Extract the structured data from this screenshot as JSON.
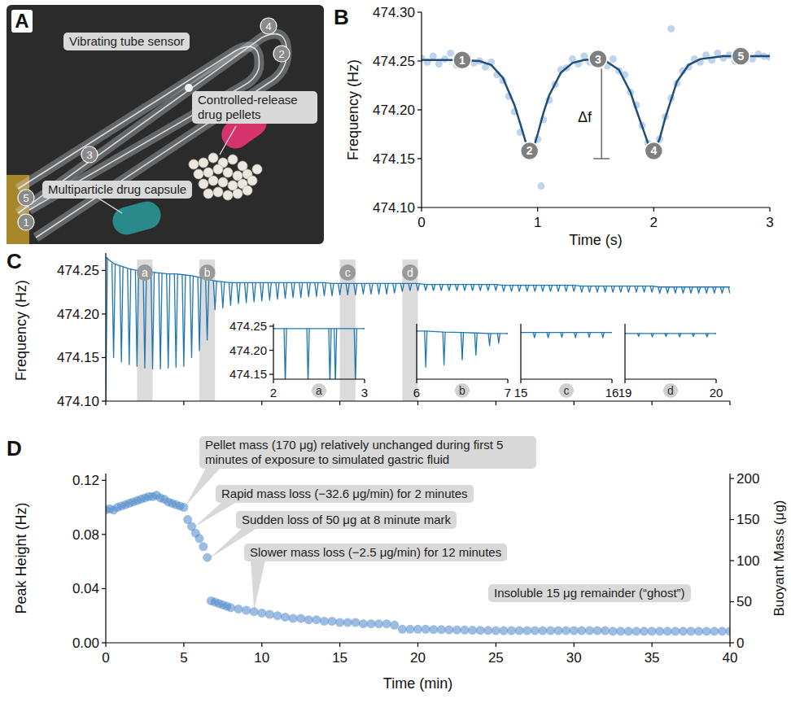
{
  "photo": {
    "label": "A",
    "texts": [
      "Vibrating tube sensor",
      "Controlled-release drug pellets",
      "Multiparticle drug capsule"
    ],
    "markers": [
      "1",
      "2",
      "3",
      "4",
      "5"
    ]
  },
  "chart_data": [
    {
      "label": "B",
      "type": "scatter",
      "color": "#6f9fd8",
      "x": [
        0,
        0.05,
        0.1,
        0.15,
        0.2,
        0.25,
        0.3,
        0.35,
        0.4,
        0.45,
        0.5,
        0.55,
        0.6,
        0.65,
        0.7,
        0.75,
        0.8,
        0.85,
        0.9,
        0.95,
        1.0,
        1.05,
        1.1,
        1.15,
        1.2,
        1.25,
        1.3,
        1.35,
        1.4,
        1.45,
        1.5,
        1.55,
        1.6,
        1.65,
        1.7,
        1.75,
        1.8,
        1.85,
        1.9,
        1.95,
        2.0,
        2.05,
        2.1,
        2.15,
        2.2,
        2.25,
        2.3,
        2.35,
        2.4,
        2.45,
        2.5,
        2.55,
        2.6,
        2.65,
        2.7,
        2.75,
        2.8,
        2.85,
        2.9,
        2.95,
        3.0,
        1.03,
        2.15
      ],
      "values": [
        474.253,
        474.249,
        474.255,
        474.247,
        474.252,
        474.258,
        474.246,
        474.251,
        474.254,
        474.248,
        474.25,
        474.244,
        474.249,
        474.236,
        474.23,
        474.214,
        474.198,
        474.177,
        474.16,
        474.152,
        474.17,
        474.19,
        474.21,
        474.226,
        474.241,
        474.243,
        474.252,
        474.247,
        474.255,
        474.249,
        474.256,
        474.25,
        474.245,
        474.252,
        474.24,
        474.236,
        474.218,
        474.205,
        474.184,
        474.166,
        474.155,
        474.17,
        474.193,
        474.212,
        474.227,
        474.24,
        474.244,
        474.252,
        474.249,
        474.256,
        474.251,
        474.258,
        474.253,
        474.256,
        474.25,
        474.259,
        474.254,
        474.252,
        474.257,
        474.255,
        474.254,
        474.122,
        474.283
      ],
      "fit": {
        "color": "#1f4e79",
        "x": [
          0,
          0.3,
          0.5,
          0.6,
          0.7,
          0.8,
          0.85,
          0.9,
          0.93,
          0.97,
          1.0,
          1.05,
          1.1,
          1.2,
          1.3,
          1.4,
          1.5,
          1.6,
          1.7,
          1.8,
          1.85,
          1.9,
          1.95,
          2.0,
          2.05,
          2.1,
          2.2,
          2.3,
          2.4,
          2.6,
          3.0
        ],
        "values": [
          474.251,
          474.251,
          474.25,
          474.246,
          474.233,
          474.205,
          474.186,
          474.166,
          474.158,
          474.163,
          474.175,
          474.197,
          474.215,
          474.238,
          474.248,
          474.251,
          474.252,
          474.249,
          474.241,
          474.218,
          474.2,
          474.183,
          474.166,
          474.158,
          474.17,
          474.192,
          474.229,
          474.246,
          474.252,
          474.255,
          474.255
        ]
      },
      "point_labels": [
        {
          "x": 0.35,
          "y": 474.251,
          "label": "1"
        },
        {
          "x": 0.93,
          "y": 474.158,
          "label": "2"
        },
        {
          "x": 1.52,
          "y": 474.252,
          "label": "3"
        },
        {
          "x": 2.0,
          "y": 474.158,
          "label": "4"
        },
        {
          "x": 2.75,
          "y": 474.255,
          "label": "5"
        }
      ],
      "annotations": [
        {
          "text": "Δf",
          "x": 1.55,
          "y_from": 474.252,
          "y_to": 474.15
        }
      ],
      "xlim": [
        0,
        3
      ],
      "ylim": [
        474.1,
        474.3
      ],
      "xticks": [
        0,
        1,
        2,
        3
      ],
      "yticks": [
        {
          "value": 474.1,
          "label": "474.10"
        },
        474.15,
        {
          "value": 474.2,
          "label": "474.20"
        },
        474.25,
        {
          "value": 474.3,
          "label": "474.30"
        }
      ],
      "x_label": "Time (s)",
      "y_label": "Frequency (Hz)"
    },
    {
      "label": "C",
      "type": "line",
      "color": "#1f77b4",
      "x": [
        0,
        0.5,
        1,
        1.5,
        2,
        2.5,
        3,
        3.5,
        4,
        4.5,
        5,
        5.5,
        6,
        6.5,
        7,
        7.5,
        8,
        8.5,
        9,
        9.5,
        10,
        10.5,
        11,
        11.5,
        12,
        12.5,
        13,
        13.5,
        14,
        14.5,
        15,
        15.5,
        16,
        16.5,
        17,
        17.5,
        18,
        18.5,
        19,
        19.5,
        20,
        20.5,
        21,
        21.5,
        22,
        22.5,
        23,
        23.5,
        24,
        24.5,
        25,
        25.5,
        26,
        26.5,
        27,
        27.5,
        28,
        28.5,
        29,
        29.5,
        30,
        30.5,
        31,
        31.5,
        32,
        32.5,
        33,
        33.5,
        34,
        34.5,
        35,
        35.5,
        36,
        36.5,
        37,
        37.5,
        38,
        38.5,
        39,
        39.5,
        40
      ],
      "series": [
        {
          "values": [
            474.265,
            474.258,
            474.255,
            474.252,
            474.25,
            474.249,
            474.248,
            474.247,
            474.246,
            474.246,
            474.245,
            474.244,
            474.242,
            474.24,
            474.238,
            474.237,
            474.236,
            474.236,
            474.236,
            474.236,
            474.236,
            474.236,
            474.236,
            474.236,
            474.236,
            474.236,
            474.236,
            474.236,
            474.236,
            474.235,
            474.235,
            474.235,
            474.235,
            474.235,
            474.235,
            474.235,
            474.235,
            474.235,
            474.235,
            474.235,
            474.235,
            474.234,
            474.234,
            474.234,
            474.234,
            474.234,
            474.234,
            474.234,
            474.234,
            474.234,
            474.234,
            474.233,
            474.233,
            474.233,
            474.233,
            474.233,
            474.233,
            474.233,
            474.233,
            474.233,
            474.233,
            474.232,
            474.232,
            474.232,
            474.232,
            474.232,
            474.232,
            474.232,
            474.232,
            474.232,
            474.232,
            474.231,
            474.231,
            474.231,
            474.231,
            474.231,
            474.231,
            474.231,
            474.231,
            474.231,
            474.231
          ]
        },
        {
          "values": [
            474.1,
            474.15,
            474.145,
            474.142,
            474.14,
            474.138,
            474.137,
            474.137,
            474.138,
            474.139,
            474.14,
            474.15,
            474.158,
            474.17,
            474.205,
            474.207,
            474.21,
            474.212,
            474.213,
            474.214,
            474.215,
            474.216,
            474.217,
            474.218,
            474.219,
            474.219,
            474.22,
            474.22,
            474.221,
            474.221,
            474.222,
            474.222,
            474.222,
            474.223,
            474.223,
            474.223,
            474.223,
            474.224,
            474.226,
            474.227,
            474.227,
            474.227,
            474.227,
            474.227,
            474.227,
            474.227,
            474.227,
            474.227,
            474.227,
            474.227,
            474.227,
            474.226,
            474.226,
            474.226,
            474.226,
            474.226,
            474.226,
            474.226,
            474.226,
            474.226,
            474.226,
            474.225,
            474.225,
            474.225,
            474.225,
            474.225,
            474.225,
            474.225,
            474.225,
            474.225,
            474.225,
            474.224,
            474.224,
            474.224,
            474.224,
            474.224,
            474.224,
            474.224,
            474.224,
            474.224,
            474.224
          ]
        }
      ],
      "xlim": [
        0,
        40
      ],
      "ylim": [
        474.1,
        474.27
      ],
      "xticks": [
        0,
        5,
        10,
        15,
        20,
        25,
        30,
        35,
        40
      ],
      "yticks": [
        {
          "value": 474.1,
          "label": "474.10"
        },
        474.15,
        {
          "value": 474.2,
          "label": "474.20"
        },
        474.25
      ],
      "tick_labels": "y",
      "y_label": "Frequency (Hz)",
      "highlights": [
        {
          "label": "a",
          "x": [
            2,
            3
          ]
        },
        {
          "label": "b",
          "x": [
            6,
            7
          ]
        },
        {
          "label": "c",
          "x": [
            15,
            16
          ]
        },
        {
          "label": "d",
          "x": [
            19,
            20
          ]
        }
      ],
      "insets": [
        {
          "label": "a",
          "type": "line",
          "color": "#1f77b4",
          "x": [
            2,
            2.13,
            2.38,
            2.62,
            2.68,
            2.9,
            3
          ],
          "series": [
            {
              "values": [
                474.245,
                474.245,
                474.245,
                474.245,
                474.245,
                474.245,
                474.245
              ]
            },
            {
              "values": [
                474.245,
                474.13,
                474.13,
                474.13,
                474.13,
                474.13,
                474.245
              ]
            }
          ],
          "xlim": [
            2,
            3
          ],
          "ylim": [
            474.14,
            474.255
          ],
          "xticks": [
            2,
            3
          ],
          "yticks": [
            474.15,
            {
              "value": 474.2,
              "label": "474.20"
            },
            474.25
          ]
        },
        {
          "label": "b",
          "type": "line",
          "color": "#1f77b4",
          "x": [
            6,
            6.1,
            6.3,
            6.5,
            6.65,
            6.8,
            6.9,
            7
          ],
          "series": [
            {
              "values": [
                474.24,
                474.24,
                474.238,
                474.237,
                474.236,
                474.235,
                474.235,
                474.235
              ]
            },
            {
              "values": [
                474.24,
                474.165,
                474.17,
                474.18,
                474.19,
                474.21,
                474.215,
                474.235
              ]
            }
          ],
          "xlim": [
            6,
            7
          ],
          "ylim": [
            474.14,
            474.255
          ],
          "xticks": [
            6,
            7
          ],
          "tick_labels": "x"
        },
        {
          "label": "c",
          "type": "line",
          "color": "#1f77b4",
          "x": [
            15,
            15.15,
            15.3,
            15.45,
            15.6,
            15.75,
            15.9,
            16
          ],
          "series": [
            {
              "values": [
                474.237,
                474.237,
                474.237,
                474.237,
                474.237,
                474.237,
                474.237,
                474.237
              ]
            },
            {
              "values": [
                474.237,
                474.226,
                474.226,
                474.227,
                474.226,
                474.227,
                474.226,
                474.237
              ]
            }
          ],
          "xlim": [
            15,
            16
          ],
          "ylim": [
            474.14,
            474.255
          ],
          "xticks": [
            15,
            16
          ],
          "tick_labels": "x"
        },
        {
          "label": "d",
          "type": "line",
          "color": "#1f77b4",
          "x": [
            19,
            19.15,
            19.3,
            19.45,
            19.6,
            19.75,
            19.9,
            20
          ],
          "series": [
            {
              "values": [
                474.235,
                474.235,
                474.235,
                474.235,
                474.235,
                474.235,
                474.235,
                474.235
              ]
            },
            {
              "values": [
                474.235,
                474.229,
                474.228,
                474.229,
                474.228,
                474.229,
                474.228,
                474.235
              ]
            }
          ],
          "xlim": [
            19,
            20
          ],
          "ylim": [
            474.14,
            474.255
          ],
          "xticks": [
            19,
            20
          ],
          "tick_labels": "x"
        }
      ]
    },
    {
      "label": "D",
      "type": "scatter",
      "color": "#4a86c8",
      "x": [
        0,
        0.25,
        0.5,
        0.75,
        1,
        1.25,
        1.5,
        1.75,
        2,
        2.25,
        2.5,
        2.75,
        3,
        3.25,
        3.5,
        3.75,
        4,
        4.25,
        4.5,
        4.75,
        5,
        5.25,
        5.5,
        5.75,
        6,
        6.25,
        6.5,
        6.75,
        7,
        7.25,
        7.5,
        7.75,
        8,
        8.5,
        9,
        9.5,
        10,
        10.5,
        11,
        11.5,
        12,
        12.5,
        13,
        13.5,
        14,
        14.5,
        15,
        15.5,
        16,
        16.5,
        17,
        17.5,
        18,
        18.5,
        19,
        19.5,
        20,
        20.5,
        21,
        21.5,
        22,
        22.5,
        23,
        23.5,
        24,
        24.5,
        25,
        25.5,
        26,
        26.5,
        27,
        27.5,
        28,
        28.5,
        29,
        29.5,
        30,
        30.5,
        31,
        31.5,
        32,
        32.5,
        33,
        33.5,
        34,
        34.5,
        35,
        35.5,
        36,
        36.5,
        37,
        37.5,
        38,
        38.5,
        39,
        39.5,
        40
      ],
      "values": [
        0.098,
        0.099,
        0.098,
        0.1,
        0.101,
        0.102,
        0.103,
        0.104,
        0.105,
        0.106,
        0.107,
        0.108,
        0.108,
        0.109,
        0.107,
        0.106,
        0.104,
        0.103,
        0.102,
        0.101,
        0.1,
        0.091,
        0.086,
        0.081,
        0.077,
        0.071,
        0.063,
        0.031,
        0.03,
        0.029,
        0.028,
        0.027,
        0.026,
        0.025,
        0.024,
        0.023,
        0.022,
        0.021,
        0.02,
        0.019,
        0.018,
        0.018,
        0.017,
        0.017,
        0.016,
        0.016,
        0.015,
        0.015,
        0.015,
        0.014,
        0.014,
        0.014,
        0.014,
        0.013,
        0.01,
        0.01,
        0.01,
        0.01,
        0.0098,
        0.0097,
        0.0096,
        0.0095,
        0.0094,
        0.0093,
        0.0092,
        0.0091,
        0.009,
        0.009,
        0.009,
        0.009,
        0.009,
        0.009,
        0.009,
        0.009,
        0.009,
        0.009,
        0.009,
        0.009,
        0.009,
        0.009,
        0.009,
        0.0085,
        0.0085,
        0.0085,
        0.0085,
        0.0085,
        0.0085,
        0.0085,
        0.0085,
        0.0085,
        0.0085,
        0.0085,
        0.0085,
        0.0085,
        0.0085,
        0.0085,
        0.0085
      ],
      "xlim": [
        0,
        40
      ],
      "ylim": [
        0,
        0.125
      ],
      "y2lim": [
        0,
        206
      ],
      "xticks": [
        0,
        5,
        10,
        15,
        20,
        25,
        30,
        35,
        40
      ],
      "yticks": [
        {
          "value": 0,
          "label": "0.00"
        },
        {
          "value": 0.04,
          "label": "0.04"
        },
        {
          "value": 0.08,
          "label": "0.08"
        },
        {
          "value": 0.12,
          "label": "0.12"
        }
      ],
      "y2ticks": [
        0,
        50,
        100,
        150,
        200
      ],
      "x_label": "Time (min)",
      "y_label": "Peak Height (Hz)",
      "y2_label": "Buoyant Mass (μg)",
      "annotations": [
        {
          "text": "Pellet mass (170 μg) relatively unchanged during first 5 minutes of exposure to simulated gastric fluid",
          "x": 5.1,
          "y": 0.101
        },
        {
          "text": "Rapid mass loss (−32.6 μg/min) for 2 minutes",
          "x": 5.6,
          "y": 0.085
        },
        {
          "text": "Sudden loss of 50 μg at 8 minute mark",
          "x": 6.6,
          "y": 0.062
        },
        {
          "text": "Slower mass loss (−2.5 μg/min) for 12 minutes",
          "x": 9.5,
          "y": 0.024
        },
        {
          "text": "Insoluble 15 μg remainder (“ghost”)"
        }
      ]
    }
  ]
}
